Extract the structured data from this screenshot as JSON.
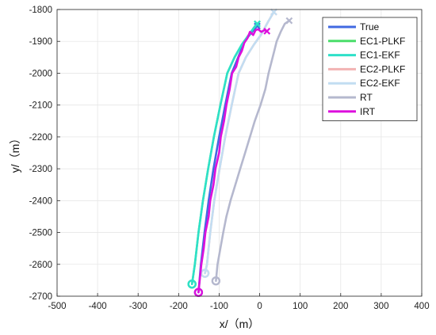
{
  "chart_data": {
    "type": "line",
    "title": "",
    "xlabel": "x/（m）",
    "ylabel": "y/（m）",
    "xlim": [
      -500,
      400
    ],
    "ylim": [
      -2700,
      -1800
    ],
    "xticks": [
      -500,
      -400,
      -300,
      -200,
      -100,
      0,
      100,
      200,
      300,
      400
    ],
    "yticks": [
      -1800,
      -1900,
      -2000,
      -2100,
      -2200,
      -2300,
      -2400,
      -2500,
      -2600,
      -2700
    ],
    "grid": true,
    "legend_position": "top-right",
    "series": [
      {
        "name": "True",
        "color": "#4169e1",
        "start_marker": "circle",
        "end_marker": "x",
        "x": [
          -151,
          -145,
          -136,
          -126,
          -114,
          -100,
          -85,
          -69,
          -53,
          -37,
          -22,
          -6
        ],
        "y": [
          -2688,
          -2600,
          -2500,
          -2400,
          -2300,
          -2200,
          -2100,
          -2000,
          -1950,
          -1900,
          -1875,
          -1852
        ]
      },
      {
        "name": "EC1-PLKF",
        "color": "#4ade6a",
        "start_marker": "circle",
        "end_marker": "x",
        "x": [
          -167,
          -160,
          -151,
          -140,
          -127,
          -113,
          -97,
          -80,
          -62,
          -44,
          -27,
          -14,
          -6
        ],
        "y": [
          -2662,
          -2600,
          -2500,
          -2400,
          -2300,
          -2200,
          -2100,
          -2000,
          -1950,
          -1910,
          -1880,
          -1857,
          -1845
        ]
      },
      {
        "name": "EC1-EKF",
        "color": "#2ee0c8",
        "start_marker": "circle",
        "end_marker": "x",
        "x": [
          -167,
          -160,
          -151,
          -140,
          -127,
          -113,
          -97,
          -80,
          -62,
          -44,
          -27,
          -14,
          -6
        ],
        "y": [
          -2662,
          -2600,
          -2500,
          -2400,
          -2300,
          -2200,
          -2100,
          -2000,
          -1950,
          -1910,
          -1880,
          -1857,
          -1845
        ]
      },
      {
        "name": "EC2-PLKF",
        "color": "#f2b3b3",
        "start_marker": "circle",
        "end_marker": "x",
        "x": [
          -135,
          -130,
          -122,
          -112,
          -99,
          -85,
          -69,
          -52,
          -34,
          -14,
          3,
          20,
          35
        ],
        "y": [
          -2628,
          -2600,
          -2500,
          -2400,
          -2300,
          -2200,
          -2100,
          -2000,
          -1950,
          -1910,
          -1880,
          -1840,
          -1808
        ]
      },
      {
        "name": "EC2-EKF",
        "color": "#c2ddf2",
        "start_marker": "circle",
        "end_marker": "x",
        "x": [
          -135,
          -130,
          -122,
          -112,
          -99,
          -85,
          -69,
          -52,
          -34,
          -14,
          3,
          20,
          35
        ],
        "y": [
          -2628,
          -2600,
          -2500,
          -2400,
          -2300,
          -2200,
          -2100,
          -2000,
          -1950,
          -1910,
          -1880,
          -1840,
          -1808
        ]
      },
      {
        "name": "RT",
        "color": "#b5b8ce",
        "start_marker": "circle",
        "end_marker": "x",
        "x": [
          -108,
          -104,
          -97,
          -90,
          -82,
          -72,
          -60,
          -48,
          -36,
          -24,
          -12,
          2,
          14,
          22,
          30,
          36,
          42,
          52,
          62,
          73
        ],
        "y": [
          -2652,
          -2600,
          -2550,
          -2500,
          -2450,
          -2400,
          -2350,
          -2300,
          -2250,
          -2200,
          -2150,
          -2100,
          -2050,
          -2000,
          -1960,
          -1930,
          -1900,
          -1870,
          -1845,
          -1835
        ]
      },
      {
        "name": "IRT",
        "color": "#dd10dd",
        "start_marker": "circle",
        "end_marker": "x",
        "x": [
          -151,
          -148,
          -144,
          -138,
          -134,
          -126,
          -122,
          -114,
          -109,
          -100,
          -96,
          -88,
          -82,
          -74,
          -68,
          -58,
          -52,
          -44,
          -38,
          -30,
          -24,
          -16,
          -10,
          -4,
          4,
          12,
          18
        ],
        "y": [
          -2688,
          -2650,
          -2600,
          -2550,
          -2500,
          -2450,
          -2400,
          -2350,
          -2300,
          -2250,
          -2200,
          -2150,
          -2100,
          -2050,
          -2000,
          -1980,
          -1950,
          -1930,
          -1905,
          -1890,
          -1870,
          -1880,
          -1865,
          -1862,
          -1870,
          -1865,
          -1868
        ]
      }
    ]
  }
}
